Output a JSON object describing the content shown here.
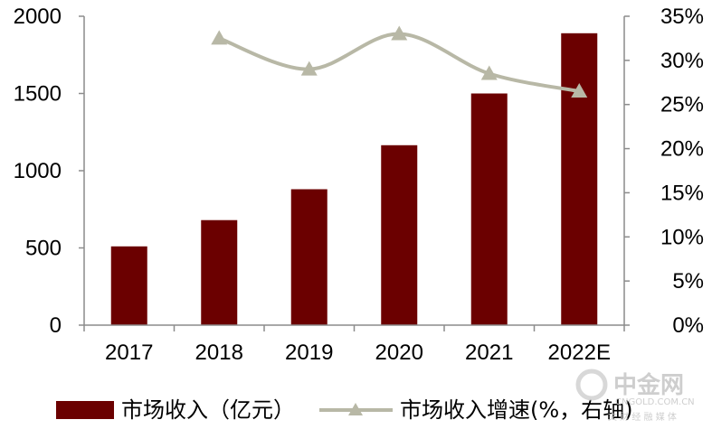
{
  "chart_data": {
    "type": "bar",
    "categories": [
      "2017",
      "2018",
      "2019",
      "2020",
      "2021",
      "2022E"
    ],
    "series": [
      {
        "name": "市场收入（亿元）",
        "type": "bar",
        "axis": "left",
        "values": [
          510,
          680,
          880,
          1165,
          1500,
          1890
        ]
      },
      {
        "name": "市场收入增速(%，右轴)",
        "type": "line",
        "axis": "right",
        "values": [
          null,
          32.5,
          29.0,
          33.0,
          28.5,
          26.5
        ]
      }
    ],
    "y_left": {
      "min": 0,
      "max": 2000,
      "step": 500,
      "ticks": [
        "0",
        "500",
        "1000",
        "1500",
        "2000"
      ]
    },
    "y_right": {
      "min": 0,
      "max": 35,
      "step": 5,
      "ticks": [
        "0%",
        "5%",
        "10%",
        "15%",
        "20%",
        "25%",
        "30%",
        "35%"
      ]
    },
    "grid": false,
    "legend_position": "bottom",
    "colors": {
      "bar": "#6b0000",
      "line": "#b8b8a6",
      "axis": "#8c8c8c"
    }
  },
  "watermark": {
    "text": "中金网",
    "url_text": "CNGOLD.COM.CN",
    "tagline": "文 财 经 融 媒 体"
  }
}
